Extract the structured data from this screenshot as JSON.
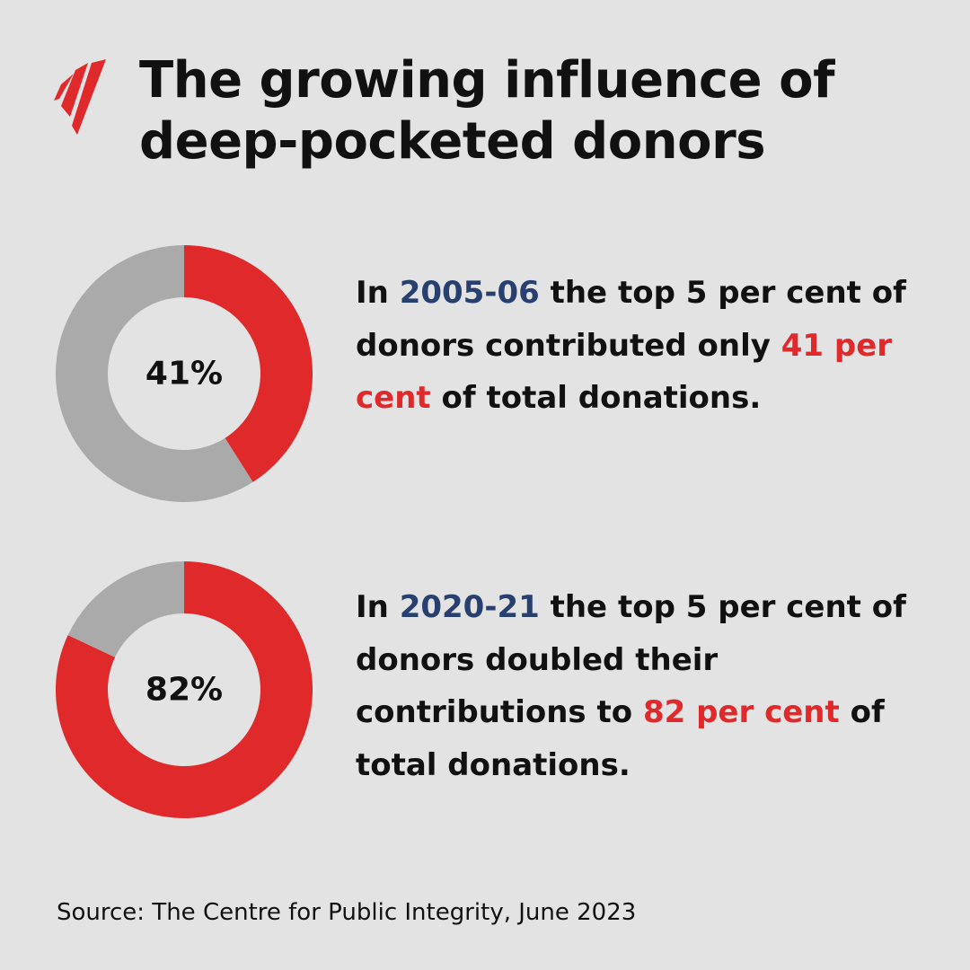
{
  "title_lines": [
    "The growing influence of",
    "deep-pocketed donors"
  ],
  "colors": {
    "background": "#e3e3e3",
    "share_red": "#e0292b",
    "remainder_grey": "#aaaaaa",
    "year_blue": "#28406f",
    "text": "#111111"
  },
  "logo": {
    "icon": "sbs-logo-icon"
  },
  "chart_data": [
    {
      "type": "pie",
      "center_label": "41%",
      "values": [
        41,
        59
      ],
      "colors": [
        "#e0292b",
        "#aaaaaa"
      ]
    },
    {
      "type": "pie",
      "center_label": "82%",
      "values": [
        82,
        18
      ],
      "colors": [
        "#e0292b",
        "#aaaaaa"
      ]
    }
  ],
  "statements": [
    {
      "prefix": "In ",
      "year": "2005-06",
      "middle": " the top 5 per cent of donors contributed only ",
      "highlight": "41 per cent",
      "suffix": " of total donations."
    },
    {
      "prefix": "In ",
      "year": "2020-21",
      "middle": " the top 5 per cent of donors doubled their contributions to ",
      "highlight": "82 per cent",
      "suffix": " of total donations."
    }
  ],
  "source": "Source: The Centre for Public Integrity, June 2023"
}
